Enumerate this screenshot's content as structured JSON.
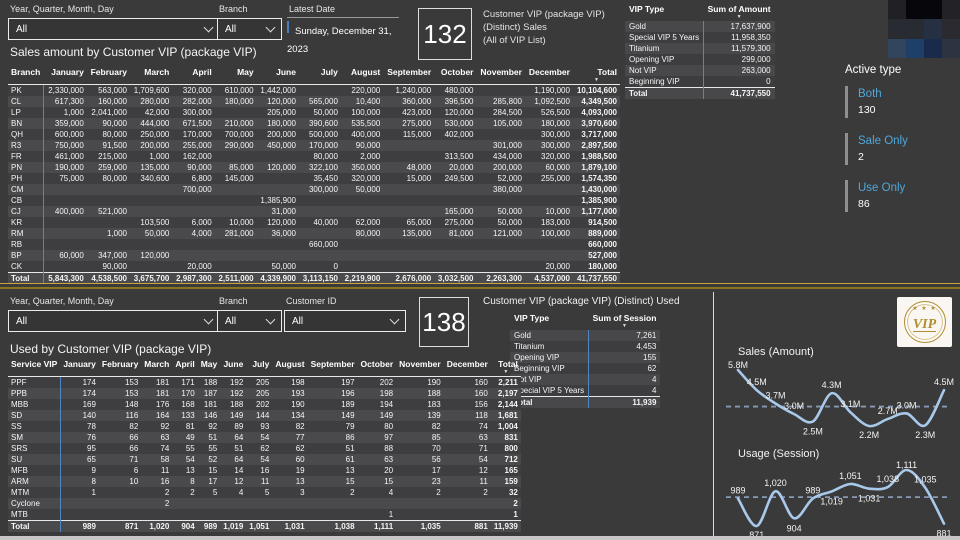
{
  "months": [
    "January",
    "February",
    "March",
    "April",
    "May",
    "June",
    "July",
    "August",
    "September",
    "October",
    "November",
    "December"
  ],
  "colors": {
    "background": "#3a3a3a",
    "accent_blue": "#4fa8dc",
    "separator_blue": "#4f86c6",
    "gold_divider": "#caa43e",
    "chart_line": "#a9c9ea",
    "chart_avg": "#8699b5",
    "logo_gold": "#b08d2f"
  },
  "top": {
    "filters": {
      "date": {
        "label": "Year, Quarter, Month, Day",
        "value": "All"
      },
      "branch": {
        "label": "Branch",
        "value": "All"
      },
      "latest_date": {
        "label": "Latest Date",
        "value": "Sunday, December 31, 2023"
      }
    },
    "kpi": {
      "value": "132",
      "caption_lines": [
        "Customer VIP (package VIP)",
        "(Distinct) Sales",
        "(All of VIP List)"
      ]
    },
    "title": "Sales amount by Customer VIP (package VIP)",
    "vip_summary": {
      "headers": [
        "VIP Type",
        "Sum of Amount"
      ],
      "rows": [
        [
          "Gold",
          "17,637,900"
        ],
        [
          "Special VIP 5 Years",
          "11,958,350"
        ],
        [
          "Titanium",
          "11,579,300"
        ],
        [
          "Opening VIP",
          "299,000"
        ],
        [
          "Not VIP",
          "263,000"
        ],
        [
          "Beginning VIP",
          "0"
        ]
      ],
      "total": [
        "Total",
        "41,737,550"
      ]
    },
    "matrix": {
      "row_header": "Branch",
      "total_header": "Total",
      "rows": [
        {
          "name": "PK",
          "values": [
            "2,330,000",
            "563,000",
            "1,709,600",
            "320,000",
            "610,000",
            "1,442,000",
            "",
            "220,000",
            "1,240,000",
            "480,000",
            "",
            "1,190,000"
          ],
          "total": "10,104,600"
        },
        {
          "name": "CL",
          "values": [
            "617,300",
            "160,000",
            "280,000",
            "282,000",
            "180,000",
            "120,000",
            "565,000",
            "10,400",
            "360,000",
            "396,500",
            "285,800",
            "1,092,500"
          ],
          "total": "4,349,500"
        },
        {
          "name": "LP",
          "values": [
            "1,000",
            "2,041,000",
            "42,000",
            "300,000",
            "",
            "205,000",
            "50,000",
            "100,000",
            "423,000",
            "120,000",
            "284,500",
            "526,500"
          ],
          "total": "4,093,000"
        },
        {
          "name": "BN",
          "values": [
            "359,000",
            "90,000",
            "444,000",
            "671,500",
            "210,000",
            "180,000",
            "390,600",
            "535,500",
            "275,000",
            "530,000",
            "105,000",
            "180,000"
          ],
          "total": "3,970,600"
        },
        {
          "name": "QH",
          "values": [
            "600,000",
            "80,000",
            "250,000",
            "170,000",
            "700,000",
            "200,000",
            "500,000",
            "400,000",
            "115,000",
            "402,000",
            "",
            "300,000"
          ],
          "total": "3,717,000"
        },
        {
          "name": "R3",
          "values": [
            "750,000",
            "91,500",
            "200,000",
            "255,000",
            "290,000",
            "450,000",
            "170,000",
            "90,000",
            "",
            "",
            "301,000",
            "300,000"
          ],
          "total": "2,897,500"
        },
        {
          "name": "FR",
          "values": [
            "461,000",
            "215,000",
            "1,000",
            "162,000",
            "",
            "",
            "80,000",
            "2,000",
            "",
            "313,500",
            "434,000",
            "320,000"
          ],
          "total": "1,988,500"
        },
        {
          "name": "PN",
          "values": [
            "190,000",
            "259,000",
            "135,000",
            "90,000",
            "85,000",
            "120,000",
            "322,100",
            "350,000",
            "48,000",
            "20,000",
            "200,000",
            "60,000"
          ],
          "total": "1,879,100"
        },
        {
          "name": "PH",
          "values": [
            "75,000",
            "80,000",
            "340,600",
            "6,800",
            "145,000",
            "",
            "35,450",
            "320,000",
            "15,000",
            "249,500",
            "52,000",
            "255,000"
          ],
          "total": "1,574,350"
        },
        {
          "name": "CM",
          "values": [
            "",
            "",
            "",
            "700,000",
            "",
            "",
            "300,000",
            "50,000",
            "",
            "",
            "380,000",
            ""
          ],
          "total": "1,430,000"
        },
        {
          "name": "CB",
          "values": [
            "",
            "",
            "",
            "",
            "",
            "1,385,900",
            "",
            "",
            "",
            "",
            "",
            ""
          ],
          "total": "1,385,900"
        },
        {
          "name": "CJ",
          "values": [
            "400,000",
            "521,000",
            "",
            "",
            "",
            "31,000",
            "",
            "",
            "",
            "165,000",
            "50,000",
            "10,000"
          ],
          "total": "1,177,000"
        },
        {
          "name": "KR",
          "values": [
            "",
            "",
            "103,500",
            "6,000",
            "10,000",
            "120,000",
            "40,000",
            "62,000",
            "65,000",
            "275,000",
            "50,000",
            "183,000"
          ],
          "total": "914,500"
        },
        {
          "name": "RM",
          "values": [
            "",
            "1,000",
            "50,000",
            "4,000",
            "281,000",
            "36,000",
            "",
            "80,000",
            "135,000",
            "81,000",
            "121,000",
            "100,000"
          ],
          "total": "889,000"
        },
        {
          "name": "RB",
          "values": [
            "",
            "",
            "",
            "",
            "",
            "",
            "660,000",
            "",
            "",
            "",
            "",
            ""
          ],
          "total": "660,000"
        },
        {
          "name": "BP",
          "values": [
            "60,000",
            "347,000",
            "120,000",
            "",
            "",
            "",
            "",
            "",
            "",
            "",
            "",
            ""
          ],
          "total": "527,000"
        },
        {
          "name": "CK",
          "values": [
            "",
            "90,000",
            "",
            "20,000",
            "",
            "50,000",
            "0",
            "",
            "",
            "",
            "",
            "20,000"
          ],
          "total": "180,000"
        }
      ],
      "total": {
        "name": "Total",
        "values": [
          "5,843,300",
          "4,538,500",
          "3,675,700",
          "2,987,300",
          "2,511,000",
          "4,339,900",
          "3,113,150",
          "2,219,900",
          "2,676,000",
          "3,032,500",
          "2,263,300",
          "4,537,000"
        ],
        "total": "41,737,550"
      }
    },
    "active_type": {
      "title": "Active type",
      "items": [
        {
          "label": "Both",
          "value": "130"
        },
        {
          "label": "Sale Only",
          "value": "2"
        },
        {
          "label": "Use Only",
          "value": "86"
        }
      ]
    },
    "mosaic_colors": [
      [
        "#212125",
        "#07070b",
        "#07070b",
        "#232327"
      ],
      [
        "#282b32",
        "#282b32",
        "#253042",
        "#2a2a30"
      ],
      [
        "#31455c",
        "#1e4068",
        "#192a4a",
        "#2c3441"
      ]
    ]
  },
  "bottom": {
    "filters": {
      "date": {
        "label": "Year, Quarter, Month, Day",
        "value": "All"
      },
      "branch": {
        "label": "Branch",
        "value": "All"
      },
      "customer_id": {
        "label": "Customer ID",
        "value": "All"
      }
    },
    "kpi": {
      "value": "138"
    },
    "used_title": "Customer VIP (package VIP) (Distinct) Used",
    "title": "Used by Customer VIP (package VIP)",
    "vip_summary": {
      "headers": [
        "VIP Type",
        "Sum of Session"
      ],
      "rows": [
        [
          "Gold",
          "7,261"
        ],
        [
          "Titanium",
          "4,453"
        ],
        [
          "Opening VIP",
          "155"
        ],
        [
          "Beginning VIP",
          "62"
        ],
        [
          "Not VIP",
          "4"
        ],
        [
          "Special VIP 5 Years",
          "4"
        ]
      ],
      "total": [
        "Total",
        "11,939"
      ]
    },
    "matrix": {
      "row_header": "Service VIP",
      "total_header": "Total",
      "rows": [
        {
          "name": "PPF",
          "values": [
            "174",
            "153",
            "181",
            "171",
            "188",
            "192",
            "205",
            "198",
            "197",
            "202",
            "190",
            "160"
          ],
          "total": "2,211"
        },
        {
          "name": "PPB",
          "values": [
            "174",
            "153",
            "181",
            "170",
            "187",
            "192",
            "205",
            "193",
            "196",
            "198",
            "188",
            "160"
          ],
          "total": "2,197"
        },
        {
          "name": "MBB",
          "values": [
            "169",
            "148",
            "176",
            "168",
            "181",
            "188",
            "202",
            "190",
            "189",
            "194",
            "183",
            "156"
          ],
          "total": "2,144"
        },
        {
          "name": "SD",
          "values": [
            "140",
            "116",
            "164",
            "133",
            "146",
            "149",
            "144",
            "134",
            "149",
            "149",
            "139",
            "118"
          ],
          "total": "1,681"
        },
        {
          "name": "SS",
          "values": [
            "78",
            "82",
            "92",
            "81",
            "92",
            "89",
            "93",
            "82",
            "79",
            "80",
            "82",
            "74"
          ],
          "total": "1,004"
        },
        {
          "name": "SM",
          "values": [
            "76",
            "66",
            "63",
            "49",
            "51",
            "64",
            "54",
            "77",
            "86",
            "97",
            "85",
            "63"
          ],
          "total": "831"
        },
        {
          "name": "SRS",
          "values": [
            "95",
            "66",
            "74",
            "55",
            "55",
            "51",
            "62",
            "62",
            "51",
            "88",
            "70",
            "71"
          ],
          "total": "800"
        },
        {
          "name": "SU",
          "values": [
            "65",
            "71",
            "58",
            "54",
            "52",
            "64",
            "54",
            "60",
            "61",
            "63",
            "56",
            "54"
          ],
          "total": "712"
        },
        {
          "name": "MFB",
          "values": [
            "9",
            "6",
            "11",
            "13",
            "15",
            "14",
            "16",
            "19",
            "13",
            "20",
            "17",
            "12"
          ],
          "total": "165"
        },
        {
          "name": "ARM",
          "values": [
            "8",
            "10",
            "16",
            "8",
            "17",
            "12",
            "11",
            "13",
            "15",
            "15",
            "23",
            "11"
          ],
          "total": "159"
        },
        {
          "name": "MTM",
          "values": [
            "1",
            "",
            "2",
            "2",
            "5",
            "4",
            "5",
            "3",
            "2",
            "4",
            "2",
            "2"
          ],
          "total": "32"
        },
        {
          "name": "Cyclone",
          "values": [
            "",
            "",
            "2",
            "",
            "",
            "",
            "",
            "",
            "",
            "",
            "",
            ""
          ],
          "total": "2"
        },
        {
          "name": "MTB",
          "values": [
            "",
            "",
            "",
            "",
            "",
            "",
            "",
            "",
            "",
            "1",
            "",
            ""
          ],
          "total": "1"
        }
      ],
      "total": {
        "name": "Total",
        "values": [
          "989",
          "871",
          "1,020",
          "904",
          "989",
          "1,019",
          "1,051",
          "1,031",
          "1,038",
          "1,111",
          "1,035",
          "881"
        ],
        "total": "11,939"
      }
    },
    "logo": {
      "stars": "★ ★ ★",
      "text": "VIP"
    }
  },
  "chart_data": [
    {
      "type": "line",
      "title": "Sales (Amount)",
      "x": [
        "January",
        "February",
        "March",
        "April",
        "May",
        "June",
        "July",
        "August",
        "September",
        "October",
        "November",
        "December"
      ],
      "values": [
        5843300,
        4538500,
        3675700,
        2987300,
        2511000,
        4339900,
        3113150,
        2219900,
        2676000,
        3032500,
        2263300,
        4537000
      ],
      "labels": [
        "5.8M",
        "4.5M",
        "3.7M",
        "3.0M",
        "2.5M",
        "4.3M",
        "3.1M",
        "2.2M",
        "2.7M",
        "3.0M",
        "2.3M",
        "4.5M"
      ],
      "avg_line": 3478129,
      "label_below": [
        false,
        false,
        false,
        false,
        true,
        false,
        false,
        true,
        false,
        false,
        true,
        false
      ],
      "line_color": "#a9c9ea",
      "avg_color": "#8699b5",
      "legend": "off",
      "grid": "off"
    },
    {
      "type": "line",
      "title": "Usage (Session)",
      "x": [
        "January",
        "February",
        "March",
        "April",
        "May",
        "June",
        "July",
        "August",
        "September",
        "October",
        "November",
        "December"
      ],
      "values": [
        989,
        871,
        1020,
        904,
        989,
        1019,
        1051,
        1031,
        1038,
        1111,
        1035,
        881
      ],
      "labels": [
        "989",
        "871",
        "1,020",
        "904",
        "989",
        "1,019",
        "1,051",
        "1,031",
        "1,038",
        "1,111",
        "1,035",
        "881"
      ],
      "avg_line": 994.9,
      "label_below": [
        false,
        true,
        false,
        true,
        false,
        true,
        false,
        true,
        false,
        false,
        false,
        true
      ],
      "line_color": "#a9c9ea",
      "avg_color": "#8699b5",
      "legend": "off",
      "grid": "off"
    }
  ]
}
